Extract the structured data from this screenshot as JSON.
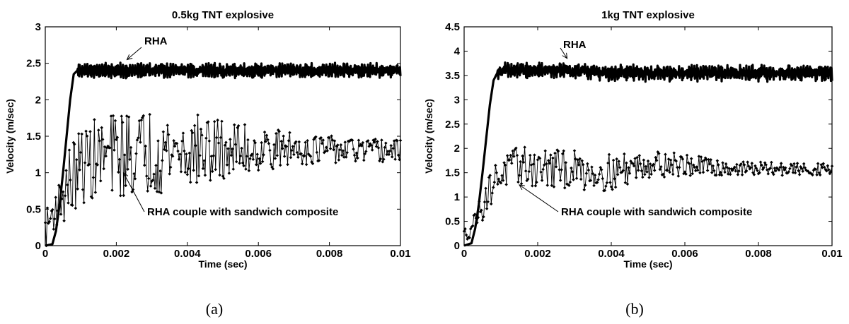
{
  "figure": {
    "subfigure_labels": [
      "(a)",
      "(b)"
    ]
  },
  "colors": {
    "axes": "#000000",
    "series": "#000000",
    "background": "#ffffff"
  },
  "chart_data": [
    {
      "type": "line",
      "title": "0.5kg TNT explosive",
      "xlabel": "Time (sec)",
      "ylabel": "Velocity (m/sec)",
      "xlim": [
        0,
        0.01
      ],
      "ylim": [
        0,
        3
      ],
      "xticks": [
        0,
        0.002,
        0.004,
        0.006,
        0.008,
        0.01
      ],
      "xtick_labels": [
        "0",
        "0.002",
        "0.004",
        "0.006",
        "0.008",
        "0.01"
      ],
      "yticks": [
        0,
        0.5,
        1,
        1.5,
        2,
        2.5,
        3
      ],
      "ytick_labels": [
        "0",
        "0.5",
        "1",
        "1.5",
        "2",
        "2.5",
        "3"
      ],
      "grid": false,
      "legend": "none",
      "annotations": [
        {
          "text": "RHA",
          "target": [
            0.0023,
            2.55
          ]
        },
        {
          "text": "RHA couple with sandwich composite",
          "target": [
            0.0022,
            1.0
          ]
        }
      ],
      "series": [
        {
          "style": "thick-line",
          "x": [
            0,
            0.0002,
            0.0003,
            0.0004,
            0.0005,
            0.0006,
            0.0007,
            0.0008,
            0.0009,
            0.001,
            0.002,
            0.003,
            0.004,
            0.005,
            0.006,
            0.007,
            0.008,
            0.009,
            0.01
          ],
          "y": [
            0,
            0.02,
            0.2,
            0.55,
            1.0,
            1.5,
            2.0,
            2.35,
            2.4,
            2.4,
            2.4,
            2.4,
            2.4,
            2.4,
            2.4,
            2.4,
            2.4,
            2.4,
            2.4
          ],
          "oscillation_after": 0.0009,
          "oscillation_amplitude": 0.12
        },
        {
          "style": "noisy-markers",
          "x": [
            0,
            0.0002,
            0.0004,
            0.0006,
            0.0008,
            0.001,
            0.0015,
            0.002,
            0.003,
            0.004,
            0.005,
            0.006,
            0.007,
            0.008,
            0.009,
            0.01
          ],
          "y": [
            0.2,
            0.45,
            0.6,
            0.8,
            0.95,
            1.1,
            1.2,
            1.25,
            1.3,
            1.3,
            1.3,
            1.32,
            1.33,
            1.32,
            1.3,
            1.3
          ],
          "noise_peak": 0.45,
          "noise_decay_to": 0.15
        }
      ]
    },
    {
      "type": "line",
      "title": "1kg TNT explosive",
      "xlabel": "Time (sec)",
      "ylabel": "Velocity (m/sec)",
      "xlim": [
        0,
        0.01
      ],
      "ylim": [
        0,
        4.5
      ],
      "xticks": [
        0,
        0.002,
        0.004,
        0.006,
        0.008,
        0.01
      ],
      "xtick_labels": [
        "0",
        "0.002",
        "0.004",
        "0.006",
        "0.008",
        "0.01"
      ],
      "yticks": [
        0,
        0.5,
        1,
        1.5,
        2,
        2.5,
        3,
        3.5,
        4,
        4.5
      ],
      "ytick_labels": [
        "0",
        "0.5",
        "1",
        "1.5",
        "2",
        "2.5",
        "3",
        "3.5",
        "4",
        "4.5"
      ],
      "grid": false,
      "legend": "none",
      "annotations": [
        {
          "text": "RHA",
          "target": [
            0.0028,
            3.85
          ]
        },
        {
          "text": "RHA couple with sandwich composite",
          "target": [
            0.0015,
            1.25
          ]
        }
      ],
      "series": [
        {
          "style": "thick-line",
          "x": [
            0,
            0.0002,
            0.0003,
            0.0004,
            0.0005,
            0.0006,
            0.0007,
            0.0008,
            0.0009,
            0.001,
            0.002,
            0.003,
            0.004,
            0.005,
            0.006,
            0.007,
            0.008,
            0.009,
            0.01
          ],
          "y": [
            0,
            0.05,
            0.35,
            0.85,
            1.5,
            2.2,
            2.9,
            3.4,
            3.55,
            3.6,
            3.6,
            3.6,
            3.55,
            3.55,
            3.55,
            3.55,
            3.55,
            3.55,
            3.55
          ],
          "oscillation_after": 0.0009,
          "oscillation_amplitude": 0.2
        },
        {
          "style": "noisy-markers",
          "x": [
            0,
            0.0002,
            0.0004,
            0.0006,
            0.0008,
            0.001,
            0.0015,
            0.002,
            0.003,
            0.004,
            0.005,
            0.006,
            0.007,
            0.008,
            0.009,
            0.01
          ],
          "y": [
            0.2,
            0.4,
            0.7,
            1.0,
            1.3,
            1.5,
            1.65,
            1.6,
            1.55,
            1.5,
            1.7,
            1.65,
            1.6,
            1.58,
            1.57,
            1.57
          ],
          "noise_peak": 0.3,
          "noise_decay_to": 0.12
        }
      ]
    }
  ]
}
